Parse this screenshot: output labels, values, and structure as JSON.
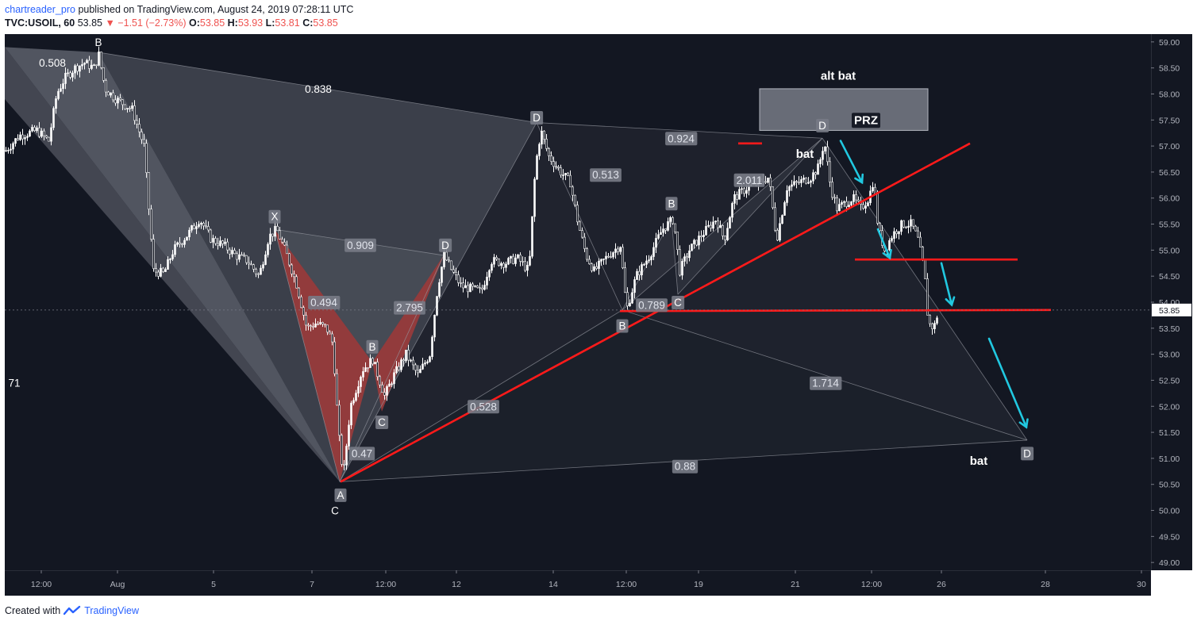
{
  "header": {
    "publisher": "chartreader_pro",
    "published_text": "published on TradingView.com, August 24, 2019 07:28:11 UTC",
    "symbol": "TVC:USOIL, 60",
    "last": "53.85",
    "change": "−1.51 (−2.73%)",
    "ohlc": {
      "o_label": "O:",
      "o": "53.85",
      "h_label": "H:",
      "h": "53.93",
      "l_label": "L:",
      "l": "53.81",
      "c_label": "C:",
      "c": "53.85"
    }
  },
  "footer": {
    "created_with": "Created with",
    "brand": "TradingView"
  },
  "colors": {
    "background": "#131722",
    "candle": "#ffffff",
    "trendline": "#ff1a1a",
    "arrow": "#21c8e0",
    "pattern_fill": "#5d606b",
    "crab_fill": "#9c3b3b"
  },
  "chart_data": {
    "type": "candlestick",
    "symbol": "TVC:USOIL",
    "timeframe": "60",
    "ylim": [
      48.85,
      59.15
    ],
    "price_ticks": [
      "59.00",
      "58.50",
      "58.00",
      "57.50",
      "57.00",
      "56.50",
      "56.00",
      "55.50",
      "55.00",
      "54.50",
      "54.00",
      "53.50",
      "53.00",
      "52.50",
      "52.00",
      "51.50",
      "51.00",
      "50.50",
      "50.00",
      "49.50",
      "49.00"
    ],
    "current_price": "53.85",
    "time_ticks": [
      {
        "label": "12:00",
        "x": 46
      },
      {
        "label": "Aug",
        "x": 142
      },
      {
        "label": "5",
        "x": 263
      },
      {
        "label": "7",
        "x": 387
      },
      {
        "label": "12:00",
        "x": 480
      },
      {
        "label": "12",
        "x": 569
      },
      {
        "label": "14",
        "x": 691
      },
      {
        "label": "12:00",
        "x": 783
      },
      {
        "label": "19",
        "x": 874
      },
      {
        "label": "21",
        "x": 996
      },
      {
        "label": "12:00",
        "x": 1092
      },
      {
        "label": "26",
        "x": 1180
      },
      {
        "label": "28",
        "x": 1311
      },
      {
        "label": "30",
        "x": 1432
      }
    ],
    "price_path": [
      {
        "x": 0,
        "p": 56.9
      },
      {
        "x": 18,
        "p": 57.2
      },
      {
        "x": 40,
        "p": 57.3
      },
      {
        "x": 55,
        "p": 57.1
      },
      {
        "x": 65,
        "p": 58.0
      },
      {
        "x": 75,
        "p": 58.3
      },
      {
        "x": 88,
        "p": 58.5
      },
      {
        "x": 100,
        "p": 58.6
      },
      {
        "x": 112,
        "p": 58.5
      },
      {
        "x": 118,
        "p": 58.75
      },
      {
        "x": 126,
        "p": 58.1
      },
      {
        "x": 140,
        "p": 57.9
      },
      {
        "x": 160,
        "p": 57.7
      },
      {
        "x": 175,
        "p": 57.0
      },
      {
        "x": 187,
        "p": 54.6
      },
      {
        "x": 200,
        "p": 54.55
      },
      {
        "x": 212,
        "p": 55.0
      },
      {
        "x": 230,
        "p": 55.3
      },
      {
        "x": 245,
        "p": 55.6
      },
      {
        "x": 260,
        "p": 55.2
      },
      {
        "x": 275,
        "p": 55.1
      },
      {
        "x": 290,
        "p": 54.9
      },
      {
        "x": 305,
        "p": 54.8
      },
      {
        "x": 320,
        "p": 54.5
      },
      {
        "x": 332,
        "p": 55.25
      },
      {
        "x": 342,
        "p": 55.4
      },
      {
        "x": 355,
        "p": 54.9
      },
      {
        "x": 368,
        "p": 54.3
      },
      {
        "x": 380,
        "p": 53.5
      },
      {
        "x": 392,
        "p": 53.6
      },
      {
        "x": 405,
        "p": 53.5
      },
      {
        "x": 413,
        "p": 53.2
      },
      {
        "x": 420,
        "p": 51.5
      },
      {
        "x": 426,
        "p": 50.65
      },
      {
        "x": 435,
        "p": 52.0
      },
      {
        "x": 450,
        "p": 52.7
      },
      {
        "x": 463,
        "p": 52.9
      },
      {
        "x": 478,
        "p": 52.2
      },
      {
        "x": 490,
        "p": 52.6
      },
      {
        "x": 505,
        "p": 53.0
      },
      {
        "x": 520,
        "p": 52.6
      },
      {
        "x": 535,
        "p": 53.0
      },
      {
        "x": 545,
        "p": 54.3
      },
      {
        "x": 553,
        "p": 54.9
      },
      {
        "x": 563,
        "p": 54.6
      },
      {
        "x": 575,
        "p": 54.3
      },
      {
        "x": 590,
        "p": 54.25
      },
      {
        "x": 600,
        "p": 54.2
      },
      {
        "x": 612,
        "p": 54.8
      },
      {
        "x": 630,
        "p": 54.75
      },
      {
        "x": 645,
        "p": 54.85
      },
      {
        "x": 660,
        "p": 54.6
      },
      {
        "x": 668,
        "p": 56.6
      },
      {
        "x": 675,
        "p": 57.3
      },
      {
        "x": 685,
        "p": 56.8
      },
      {
        "x": 700,
        "p": 56.5
      },
      {
        "x": 712,
        "p": 56.3
      },
      {
        "x": 722,
        "p": 55.5
      },
      {
        "x": 732,
        "p": 54.9
      },
      {
        "x": 742,
        "p": 54.6
      },
      {
        "x": 760,
        "p": 54.9
      },
      {
        "x": 775,
        "p": 55.1
      },
      {
        "x": 783,
        "p": 53.85
      },
      {
        "x": 795,
        "p": 54.5
      },
      {
        "x": 812,
        "p": 54.9
      },
      {
        "x": 828,
        "p": 55.4
      },
      {
        "x": 842,
        "p": 55.6
      },
      {
        "x": 850,
        "p": 54.6
      },
      {
        "x": 862,
        "p": 55.0
      },
      {
        "x": 878,
        "p": 55.3
      },
      {
        "x": 896,
        "p": 55.6
      },
      {
        "x": 906,
        "p": 55.2
      },
      {
        "x": 918,
        "p": 56.0
      },
      {
        "x": 935,
        "p": 56.2
      },
      {
        "x": 950,
        "p": 56.3
      },
      {
        "x": 962,
        "p": 56.4
      },
      {
        "x": 972,
        "p": 55.2
      },
      {
        "x": 985,
        "p": 56.2
      },
      {
        "x": 1000,
        "p": 56.3
      },
      {
        "x": 1015,
        "p": 56.4
      },
      {
        "x": 1025,
        "p": 56.6
      },
      {
        "x": 1032,
        "p": 57.1
      },
      {
        "x": 1040,
        "p": 56.2
      },
      {
        "x": 1048,
        "p": 55.8
      },
      {
        "x": 1058,
        "p": 55.9
      },
      {
        "x": 1068,
        "p": 56.0
      },
      {
        "x": 1078,
        "p": 55.8
      },
      {
        "x": 1088,
        "p": 56.0
      },
      {
        "x": 1094,
        "p": 56.35
      },
      {
        "x": 1100,
        "p": 55.4
      },
      {
        "x": 1108,
        "p": 55.0
      },
      {
        "x": 1118,
        "p": 55.3
      },
      {
        "x": 1130,
        "p": 55.5
      },
      {
        "x": 1142,
        "p": 55.5
      },
      {
        "x": 1150,
        "p": 55.2
      },
      {
        "x": 1158,
        "p": 54.6
      },
      {
        "x": 1163,
        "p": 53.6
      },
      {
        "x": 1170,
        "p": 53.5
      },
      {
        "x": 1176,
        "p": 53.85
      }
    ],
    "annotations": {
      "ratios": [
        {
          "text": "0.508",
          "x": 60,
          "p": 58.6,
          "box": false
        },
        {
          "text": "0.838",
          "x": 395,
          "p": 58.1,
          "box": false
        },
        {
          "text": "0.909",
          "x": 448,
          "p": 55.1,
          "box": true
        },
        {
          "text": "0.494",
          "x": 402,
          "p": 54.0,
          "box": true
        },
        {
          "text": "2.795",
          "x": 510,
          "p": 53.9,
          "box": true
        },
        {
          "text": "0.47",
          "x": 450,
          "p": 51.1,
          "box": true
        },
        {
          "text": "0.528",
          "x": 603,
          "p": 52.0,
          "box": true
        },
        {
          "text": "0.924",
          "x": 852,
          "p": 57.15,
          "box": true
        },
        {
          "text": "0.513",
          "x": 757,
          "p": 56.45,
          "box": true
        },
        {
          "text": "2.011",
          "x": 938,
          "p": 56.35,
          "box": true
        },
        {
          "text": "0.789",
          "x": 815,
          "p": 53.95,
          "box": true
        },
        {
          "text": "1.714",
          "x": 1034,
          "p": 52.45,
          "box": true
        },
        {
          "text": "0.88",
          "x": 857,
          "p": 50.85,
          "box": true
        },
        {
          "text": "71",
          "x": 12,
          "p": 52.45,
          "box": false
        }
      ],
      "points": [
        {
          "text": "B",
          "x": 118,
          "p": 59.0,
          "style": "plain"
        },
        {
          "text": "C",
          "x": 416,
          "p": 50.0,
          "style": "plain"
        },
        {
          "text": "X",
          "x": 340,
          "p": 55.65,
          "style": "box"
        },
        {
          "text": "D",
          "x": 555,
          "p": 55.1,
          "style": "box"
        },
        {
          "text": "B",
          "x": 463,
          "p": 53.15,
          "style": "box"
        },
        {
          "text": "C",
          "x": 475,
          "p": 51.7,
          "style": "box"
        },
        {
          "text": "A",
          "x": 423,
          "p": 50.3,
          "style": "box"
        },
        {
          "text": "D",
          "x": 670,
          "p": 57.55,
          "style": "box"
        },
        {
          "text": "B",
          "x": 840,
          "p": 55.9,
          "style": "box"
        },
        {
          "text": "C",
          "x": 848,
          "p": 54.0,
          "style": "box"
        },
        {
          "text": "B",
          "x": 778,
          "p": 53.55,
          "style": "box"
        },
        {
          "text": "D",
          "x": 1030,
          "p": 57.4,
          "style": "box"
        },
        {
          "text": "D",
          "x": 1288,
          "p": 51.1,
          "style": "box"
        }
      ],
      "labels": [
        {
          "text": "alt bat",
          "x": 1050,
          "p": 58.35,
          "style": "dark"
        },
        {
          "text": "PRZ",
          "x": 1085,
          "p": 57.5,
          "style": "dark"
        },
        {
          "text": "bat",
          "x": 1008,
          "p": 56.85,
          "style": "plain"
        },
        {
          "text": "bat",
          "x": 1227,
          "p": 50.95,
          "style": "dark"
        }
      ]
    }
  }
}
